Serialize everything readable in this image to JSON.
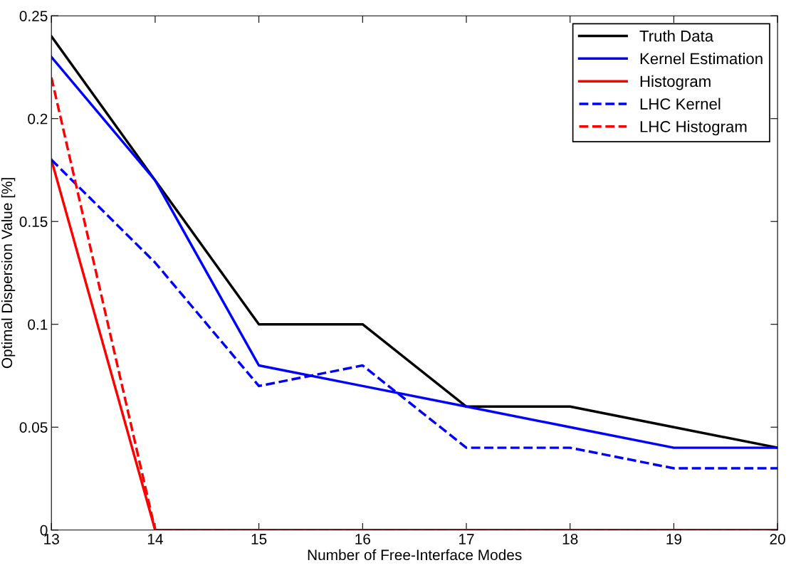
{
  "chart_data": {
    "type": "line",
    "xlabel": "Number of Free-Interface Modes",
    "ylabel": "Optimal Dispersion Value [%]",
    "x": [
      13,
      14,
      15,
      16,
      17,
      18,
      19,
      20
    ],
    "xlim": [
      13,
      20
    ],
    "xticks": [
      13,
      14,
      15,
      16,
      17,
      18,
      19,
      20
    ],
    "ylim": [
      0,
      0.25
    ],
    "yticks": [
      0,
      0.05,
      0.1,
      0.15,
      0.2,
      0.25
    ],
    "grid": false,
    "legend": "top right",
    "series": [
      {
        "name": "Truth Data",
        "color": "#000000",
        "line_style": "solid",
        "values": [
          0.24,
          0.17,
          0.1,
          0.1,
          0.06,
          0.06,
          0.05,
          0.04
        ]
      },
      {
        "name": "Kernel Estimation",
        "color": "#0000ff",
        "line_style": "solid",
        "values": [
          0.23,
          0.17,
          0.08,
          0.07,
          0.06,
          0.05,
          0.04,
          0.04
        ]
      },
      {
        "name": "Histogram",
        "color": "#ff0000",
        "line_style": "solid",
        "values": [
          0.18,
          0,
          0,
          0,
          0,
          0,
          0,
          0
        ]
      },
      {
        "name": "LHC Kernel",
        "color": "#0000ff",
        "line_style": "dashed",
        "values": [
          0.18,
          0.13,
          0.07,
          0.08,
          0.04,
          0.04,
          0.03,
          0.03
        ]
      },
      {
        "name": "LHC Histogram",
        "color": "#ff0000",
        "line_style": "dashed",
        "values": [
          0.22,
          0,
          0,
          0,
          0,
          0,
          0,
          0
        ]
      }
    ]
  }
}
